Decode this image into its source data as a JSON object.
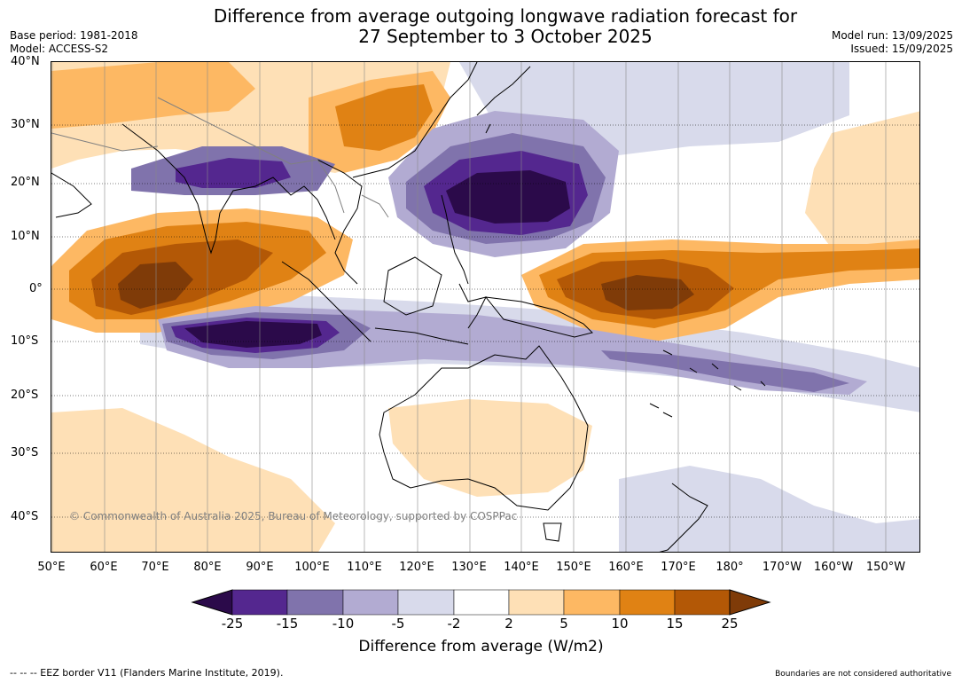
{
  "header": {
    "title_line1": "Difference from average outgoing longwave radiation forecast for",
    "title_line2": "27 September to 3 October 2025",
    "base_period": "Base period: 1981-2018",
    "model": "Model: ACCESS-S2",
    "model_run": "Model run: 13/09/2025",
    "issued": "Issued: 15/09/2025"
  },
  "map": {
    "lat_labels": [
      "40°N",
      "30°N",
      "20°N",
      "10°N",
      "0°",
      "10°S",
      "20°S",
      "30°S",
      "40°S"
    ],
    "lon_labels": [
      "50°E",
      "60°E",
      "70°E",
      "80°E",
      "90°E",
      "100°E",
      "110°E",
      "120°E",
      "130°E",
      "140°E",
      "150°E",
      "160°E",
      "170°E",
      "180°",
      "170°W",
      "160°W",
      "150°W"
    ],
    "copyright": "© Commonwealth of Australia 2025, Bureau of Meteorology, supported by COSPPac"
  },
  "colorbar": {
    "ticks": [
      "-25",
      "-15",
      "-10",
      "-5",
      "-2",
      "2",
      "5",
      "10",
      "15",
      "25"
    ],
    "colors": {
      "lt_minus25": "#2b0a4a",
      "m25_m15": "#54278f",
      "m15_m10": "#8073ac",
      "m10_m5": "#b2abd2",
      "m5_m2": "#d8daeb",
      "m2_p2": "#ffffff",
      "p2_p5": "#fee0b6",
      "p5_p10": "#fdb863",
      "p10_p15": "#e08214",
      "p15_p25": "#b35806",
      "gt_p25": "#7f3b08"
    },
    "label": "Difference from average (W/m2)"
  },
  "footer": {
    "eez_legend": "--  --  -- EEZ border V11 (Flanders Marine Institute, 2019).",
    "disclaimer": "Boundaries are not considered authoritative"
  }
}
